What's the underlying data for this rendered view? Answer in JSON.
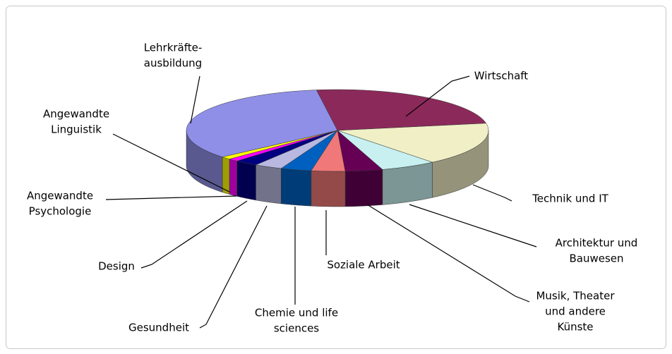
{
  "chart_data": {
    "type": "pie3d",
    "categories": [
      [
        "Wirtschaft"
      ],
      [
        "Technik und IT"
      ],
      [
        "Architektur und",
        "Bauwesen"
      ],
      [
        "Musik, Theater",
        "und andere",
        "Künste"
      ],
      [
        "Soziale Arbeit"
      ],
      [
        "Chemie und life",
        "sciences"
      ],
      [
        "Gesundheit"
      ],
      [
        "Design"
      ],
      [
        "Angewandte",
        "Psychologie"
      ],
      [
        "Angewandte",
        "Linguistik"
      ],
      [
        "Lehrkräfte-",
        "ausbildung"
      ]
    ],
    "values": [
      24.4,
      17,
      6,
      4,
      3.6,
      3.3,
      3,
      2.5,
      1.1,
      1.1,
      34
    ],
    "colors": [
      "#8b2a5a",
      "#f0efc6",
      "#c8f0f0",
      "#660055",
      "#f07878",
      "#0060c0",
      "#b8b8e0",
      "#000080",
      "#ff00ff",
      "#ffff00",
      "#8f8fe8"
    ]
  }
}
